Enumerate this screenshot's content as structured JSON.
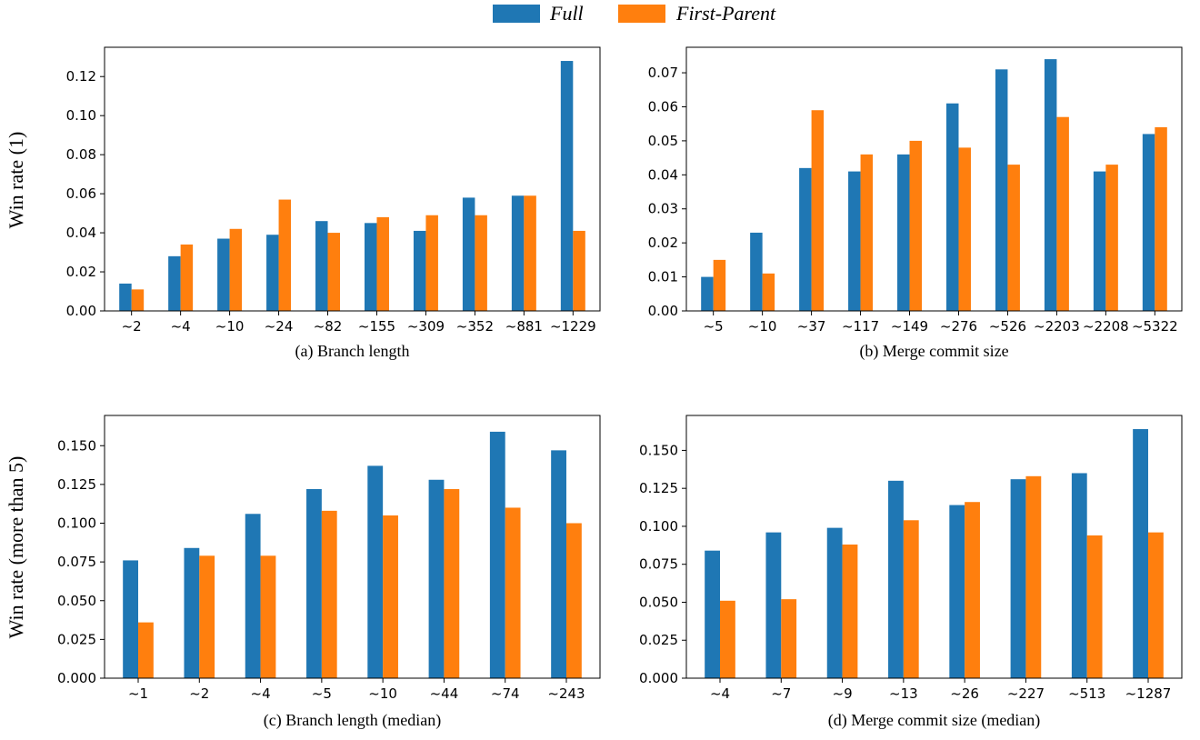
{
  "legend": [
    {
      "name": "Full",
      "color": "#1f77b4"
    },
    {
      "name": "First-Parent",
      "color": "#ff7f0e"
    }
  ],
  "ylabels": {
    "top_row": "Win rate (1)",
    "bottom_row": "Win rate (more than 5)"
  },
  "chart_data": [
    {
      "type": "bar",
      "title": "(a) Branch length",
      "ylabel": "Win rate (1)",
      "categories": [
        "~2",
        "~4",
        "~10",
        "~24",
        "~82",
        "~155",
        "~309",
        "~352",
        "~881",
        "~1229"
      ],
      "series": [
        {
          "name": "Full",
          "values": [
            0.014,
            0.028,
            0.037,
            0.039,
            0.046,
            0.045,
            0.041,
            0.058,
            0.059,
            0.128
          ]
        },
        {
          "name": "First-Parent",
          "values": [
            0.011,
            0.034,
            0.042,
            0.057,
            0.04,
            0.048,
            0.049,
            0.049,
            0.059,
            0.041
          ]
        }
      ],
      "ylim": [
        0,
        0.135
      ],
      "yticks": [
        "0.00",
        "0.02",
        "0.04",
        "0.06",
        "0.08",
        "0.10",
        "0.12"
      ],
      "legend_position": "top-center"
    },
    {
      "type": "bar",
      "title": "(b) Merge commit size",
      "ylabel": "",
      "categories": [
        "~5",
        "~10",
        "~37",
        "~117",
        "~149",
        "~276",
        "~526",
        "~2203",
        "~2208",
        "~5322"
      ],
      "series": [
        {
          "name": "Full",
          "values": [
            0.01,
            0.023,
            0.042,
            0.041,
            0.046,
            0.061,
            0.071,
            0.074,
            0.041,
            0.052
          ]
        },
        {
          "name": "First-Parent",
          "values": [
            0.015,
            0.011,
            0.059,
            0.046,
            0.05,
            0.048,
            0.043,
            0.057,
            0.043,
            0.054
          ]
        }
      ],
      "ylim": [
        0,
        0.0775
      ],
      "yticks": [
        "0.00",
        "0.01",
        "0.02",
        "0.03",
        "0.04",
        "0.05",
        "0.06",
        "0.07"
      ],
      "legend_position": "top-center"
    },
    {
      "type": "bar",
      "title": "(c) Branch length (median)",
      "ylabel": "Win rate (more than 5)",
      "categories": [
        "~1",
        "~2",
        "~4",
        "~5",
        "~10",
        "~44",
        "~74",
        "~243"
      ],
      "series": [
        {
          "name": "Full",
          "values": [
            0.076,
            0.084,
            0.106,
            0.122,
            0.137,
            0.128,
            0.159,
            0.147
          ]
        },
        {
          "name": "First-Parent",
          "values": [
            0.036,
            0.079,
            0.079,
            0.108,
            0.105,
            0.122,
            0.11,
            0.1
          ]
        }
      ],
      "ylim": [
        0,
        0.1695
      ],
      "yticks": [
        "0.000",
        "0.025",
        "0.050",
        "0.075",
        "0.100",
        "0.125",
        "0.150"
      ],
      "legend_position": "top-center"
    },
    {
      "type": "bar",
      "title": "(d) Merge commit size (median)",
      "ylabel": "",
      "categories": [
        "~4",
        "~7",
        "~9",
        "~13",
        "~26",
        "~227",
        "~513",
        "~1287"
      ],
      "series": [
        {
          "name": "Full",
          "values": [
            0.084,
            0.096,
            0.099,
            0.13,
            0.114,
            0.131,
            0.135,
            0.164
          ]
        },
        {
          "name": "First-Parent",
          "values": [
            0.051,
            0.052,
            0.088,
            0.104,
            0.116,
            0.133,
            0.094,
            0.096
          ]
        }
      ],
      "ylim": [
        0,
        0.173
      ],
      "yticks": [
        "0.000",
        "0.025",
        "0.050",
        "0.075",
        "0.100",
        "0.125",
        "0.150"
      ],
      "legend_position": "top-center"
    }
  ]
}
